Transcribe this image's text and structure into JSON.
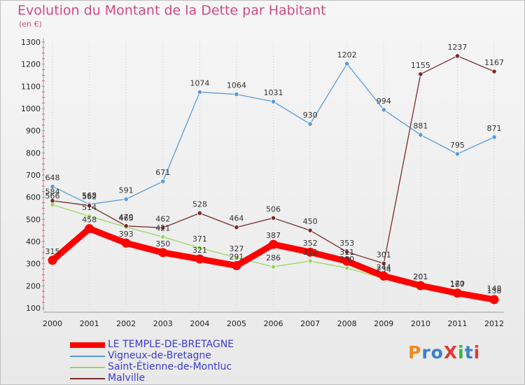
{
  "header": {
    "title": "Evolution du Montant de la Dette par Habitant",
    "subtitle": "(en €)"
  },
  "logo": {
    "text": "ProXiti",
    "colors": [
      "#f08a1c",
      "#3a7fd0",
      "#3a7fd0",
      "#e03a3a",
      "#3ab03a",
      "#3a7fd0",
      "#e03a3a"
    ]
  },
  "chart_data": {
    "type": "line",
    "title": "Evolution du Montant de la Dette par Habitant",
    "subtitle": "(en €)",
    "xlabel": "",
    "ylabel": "",
    "x": [
      "2000",
      "2001",
      "2002",
      "2003",
      "2004",
      "2005",
      "2006",
      "2007",
      "2008",
      "2009",
      "2010",
      "2011",
      "2012"
    ],
    "ylim": [
      100,
      1300
    ],
    "yticks": [
      100,
      200,
      300,
      400,
      500,
      600,
      700,
      800,
      900,
      1000,
      1100,
      1200,
      1300
    ],
    "grid": "vertical dotted",
    "legend_position": "bottom-left",
    "series": [
      {
        "name": "LE TEMPLE-DE-BRETAGNE",
        "color": "#ff0000",
        "values": [
          315,
          458,
          393,
          350,
          321,
          291,
          387,
          352,
          311,
          244,
          201,
          167,
          138
        ],
        "labels": [
          "315",
          "458",
          "393",
          "350",
          "321",
          "291",
          "387",
          "352",
          "311",
          "244",
          "201",
          "167",
          "138"
        ]
      },
      {
        "name": "Vigneux-de-Bretagne",
        "color": "#5a9bd4",
        "values": [
          648,
          568,
          591,
          671,
          1074,
          1064,
          1031,
          930,
          1202,
          994,
          881,
          795,
          871
        ],
        "labels": [
          "648",
          "568",
          "591",
          "671",
          "1074",
          "1064",
          "1031",
          "930",
          "1202",
          "994",
          "881",
          "795",
          "871"
        ]
      },
      {
        "name": "Saint-Étienne-de-Montluc",
        "color": "#99d65a",
        "values": [
          566,
          514,
          465,
          421,
          371,
          327,
          286,
          312,
          280,
          234,
          201,
          170,
          148
        ],
        "labels": [
          "566",
          "514",
          "465",
          "421",
          "371",
          "327",
          "286",
          "312",
          "280",
          "234",
          "201",
          "170",
          "148"
        ]
      },
      {
        "name": "Malville",
        "color": "#7a2a2a",
        "values": [
          584,
          562,
          470,
          462,
          528,
          464,
          506,
          450,
          353,
          301,
          1155,
          1237,
          1167
        ],
        "labels": [
          "584",
          "562",
          "470",
          "462",
          "528",
          "464",
          "506",
          "450",
          "353",
          "301",
          "1155",
          "1237",
          "1167"
        ]
      }
    ]
  }
}
